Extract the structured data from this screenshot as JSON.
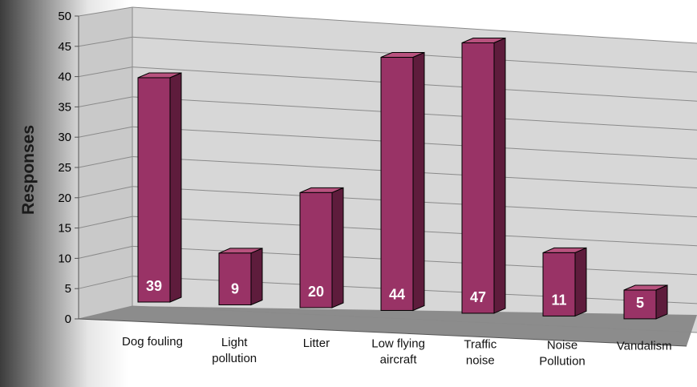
{
  "chart_data": {
    "type": "bar",
    "title": "",
    "xlabel": "",
    "ylabel": "Responses",
    "ylim": [
      0,
      50
    ],
    "yticks": [
      0,
      5,
      10,
      15,
      20,
      25,
      30,
      35,
      40,
      45,
      50
    ],
    "categories": [
      [
        "Dog fouling"
      ],
      [
        "Light",
        "pollution"
      ],
      [
        "Litter"
      ],
      [
        "Low flying",
        "aircraft"
      ],
      [
        "Traffic",
        "noise"
      ],
      [
        "Noise",
        "Pollution"
      ],
      [
        "Vandalism"
      ]
    ],
    "values": [
      39,
      9,
      20,
      44,
      47,
      11,
      5
    ],
    "grid": true,
    "style": "3d",
    "colors": {
      "bar_front": "#993366",
      "bar_top": "#b8527e",
      "bar_side": "#5e1c3c",
      "wall": "#d7d7d7",
      "floor": "#8c8c8c",
      "grid": "#8a8a8a"
    }
  }
}
